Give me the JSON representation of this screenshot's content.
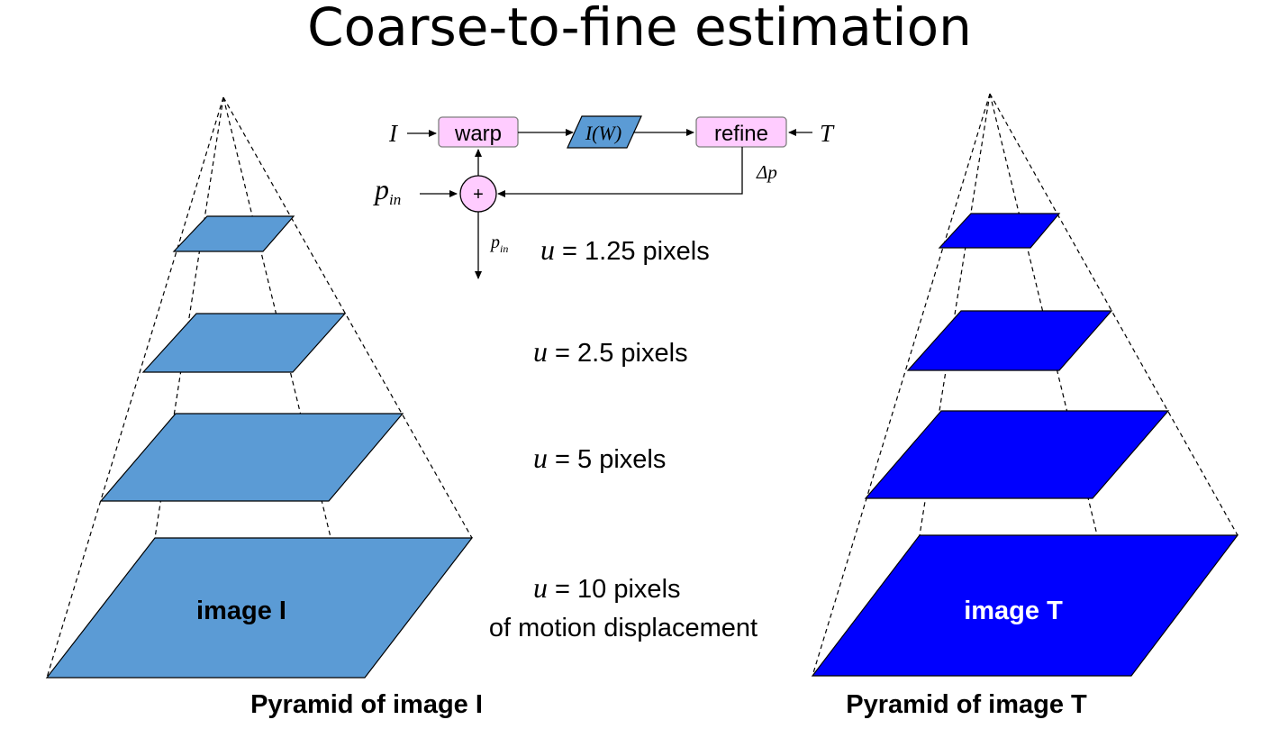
{
  "title": "Coarse-to-fine estimation",
  "colors": {
    "pyramid_I_fill": "#5b9bd5",
    "pyramid_T_fill": "#0000ff",
    "box_fill": "#ffccff",
    "box_stroke": "#7f7f7f",
    "iw_fill": "#5b9bd5"
  },
  "flow": {
    "input_I": "I",
    "warp_label": "warp",
    "iw_label": "I(W)",
    "refine_label": "refine",
    "input_T": "T",
    "delta_p": "Δp",
    "p_in_main": "p",
    "p_in_main_sub": "in",
    "plus": "+",
    "p_in_out": "p",
    "p_in_out_sub": "in"
  },
  "levels": [
    {
      "symbol": "u",
      "eq": " = 1.25 pixels"
    },
    {
      "symbol": "u",
      "eq": " = 2.5 pixels"
    },
    {
      "symbol": "u",
      "eq": " = 5 pixels"
    },
    {
      "symbol": "u",
      "eq": " = 10 pixels",
      "note": "of motion displacement"
    }
  ],
  "pyramid_I": {
    "image_label": "image I",
    "caption": "Pyramid of image I"
  },
  "pyramid_T": {
    "image_label": "image T",
    "caption": "Pyramid of image T"
  }
}
